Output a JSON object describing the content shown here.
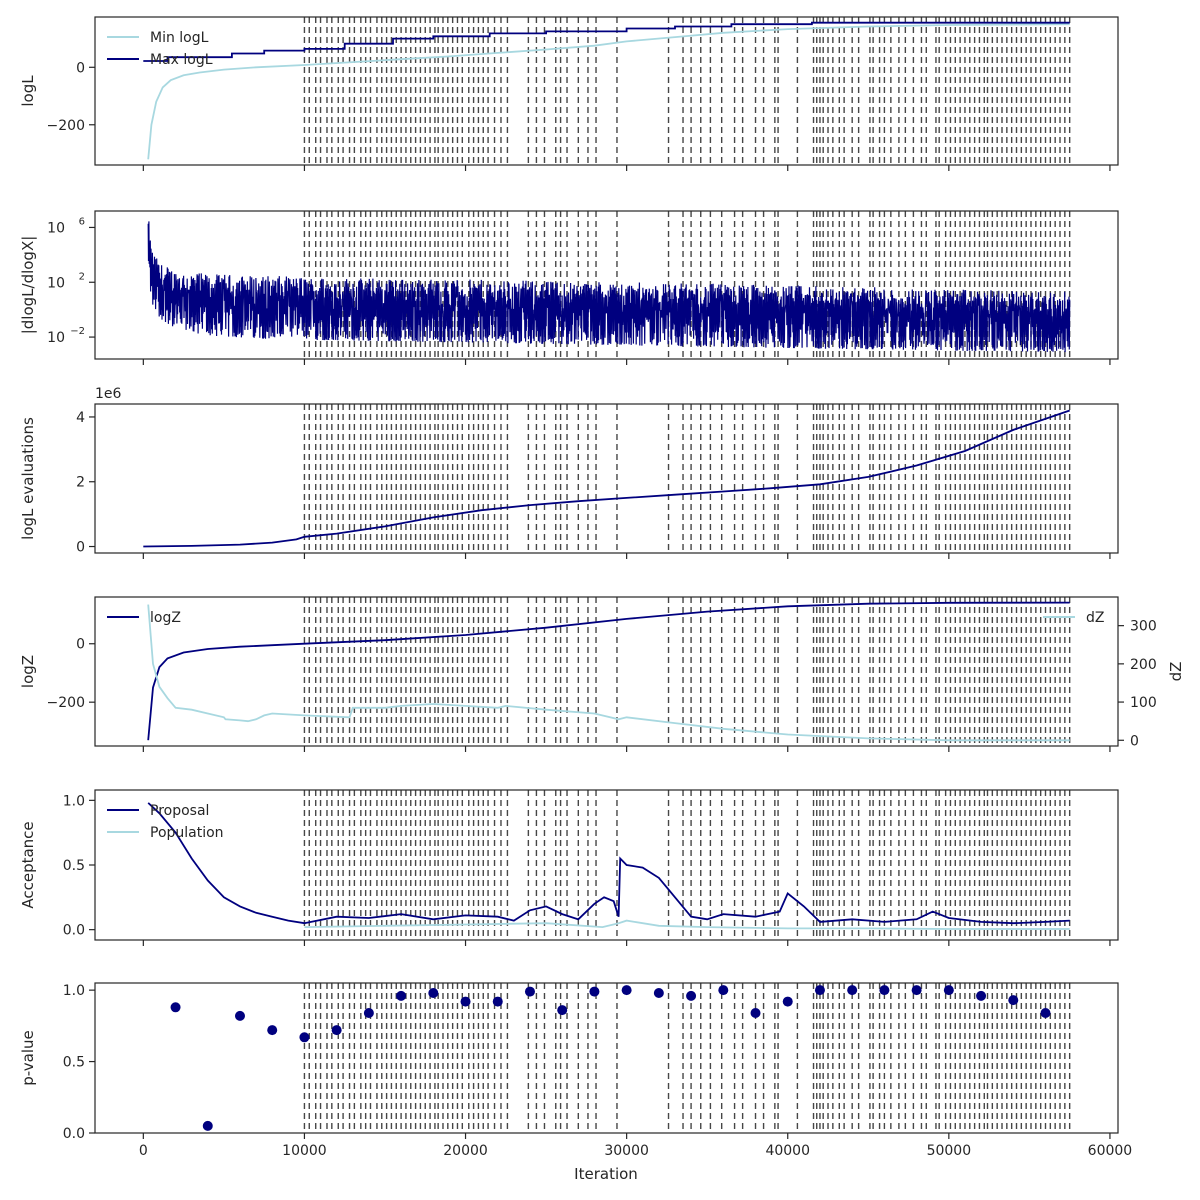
{
  "colors": {
    "dark": "#00007f",
    "light": "#a8d8e0",
    "vline": "#262626"
  },
  "chart_data": {
    "type": "line",
    "shared_x": {
      "label": "Iteration",
      "lim": [
        -3000,
        60500
      ],
      "ticks": [
        0,
        10000,
        20000,
        30000,
        40000,
        50000,
        60000
      ],
      "tick_labels": [
        "0",
        "10000",
        "20000",
        "30000",
        "40000",
        "50000",
        "60000"
      ]
    },
    "vertical_dashed_lines": [
      10000,
      10300,
      10700,
      11000,
      11400,
      11700,
      12100,
      12400,
      12800,
      13100,
      13500,
      13800,
      14100,
      14500,
      14800,
      15100,
      15400,
      15700,
      16000,
      16300,
      16600,
      16900,
      17200,
      17500,
      17800,
      18100,
      18300,
      18600,
      18900,
      19200,
      19500,
      19800,
      20200,
      20500,
      20800,
      21100,
      21400,
      21800,
      22200,
      22600,
      23900,
      24400,
      24900,
      25600,
      25900,
      26300,
      27000,
      27600,
      28100,
      29400,
      32600,
      33500,
      34000,
      34600,
      35200,
      35900,
      36700,
      37200,
      38000,
      38500,
      39200,
      39400,
      40600,
      41600,
      41800,
      42000,
      42200,
      42500,
      42800,
      43200,
      43500,
      44000,
      44400,
      45100,
      45300,
      45700,
      46000,
      46400,
      46900,
      47300,
      47800,
      48300,
      48600,
      49200,
      49400,
      49800,
      50100,
      50400,
      50700,
      51000,
      51300,
      51600,
      51900,
      52200,
      52400,
      52700,
      53000,
      53300,
      53600,
      53900,
      54200,
      54500,
      54800,
      55100,
      55400,
      55700,
      56000,
      56300,
      56600,
      56900,
      57200,
      57500
    ],
    "panels": [
      {
        "id": "logl",
        "ylabel": "logL",
        "yscale": "linear",
        "ylim": [
          -340,
          175
        ],
        "yticks": [
          -200,
          0
        ],
        "ytick_labels": [
          "−200",
          "0"
        ],
        "legend": "upper-left",
        "series": [
          {
            "name": "Min logL",
            "color_key": "light",
            "x": [
              300,
              500,
              800,
              1200,
              1700,
              2500,
              3500,
              5000,
              7000,
              10000,
              13000,
              16000,
              19000,
              22000,
              25000,
              28000,
              30000,
              33000,
              36000,
              40000,
              45000,
              50000,
              57500
            ],
            "y": [
              -320,
              -200,
              -120,
              -70,
              -45,
              -28,
              -18,
              -8,
              0,
              8,
              18,
              28,
              38,
              50,
              62,
              75,
              90,
              105,
              120,
              133,
              142,
              147,
              150
            ]
          },
          {
            "name": "Max logL",
            "color_key": "dark",
            "x": [
              0,
              1500,
              1500,
              5500,
              5500,
              7500,
              7500,
              10000,
              10000,
              12500,
              12500,
              15500,
              15500,
              18000,
              18000,
              21500,
              21500,
              25000,
              25000,
              30000,
              30000,
              33000,
              33000,
              36500,
              36500,
              41500,
              41500,
              57500
            ],
            "y": [
              22,
              22,
              35,
              35,
              48,
              48,
              58,
              58,
              64,
              64,
              82,
              82,
              100,
              100,
              108,
              108,
              118,
              118,
              125,
              125,
              135,
              135,
              142,
              142,
              150,
              150,
              155,
              155
            ]
          }
        ]
      },
      {
        "id": "dlogl",
        "ylabel": "|dlogL/dlogX|",
        "yscale": "log",
        "ylim": [
          -3.6,
          7.2
        ],
        "yticks": [
          -2,
          2,
          6
        ],
        "ytick_labels": [
          "10",
          "10",
          "10"
        ],
        "ytick_exponents": [
          "−2",
          "2",
          "6"
        ],
        "series": [
          {
            "name": "",
            "color_key": "dark",
            "kind": "noisy-band",
            "x": [
              300,
              500,
              1000,
              2000,
              4000,
              7000,
              10000,
              15000,
              20000,
              30000,
              40000,
              50000,
              57500
            ],
            "upper": [
              7.0,
              4.5,
              3.4,
              2.9,
              2.6,
              2.5,
              2.4,
              2.3,
              2.2,
              2.0,
              1.8,
              1.5,
              1.3
            ],
            "lower": [
              2.0,
              0.5,
              -0.6,
              -1.4,
              -1.9,
              -2.1,
              -2.2,
              -2.3,
              -2.4,
              -2.6,
              -2.8,
              -3.0,
              -3.1
            ]
          }
        ]
      },
      {
        "id": "evals",
        "ylabel": "logL evaluations",
        "yscale": "linear",
        "ylim": [
          -0.2,
          4.4
        ],
        "yticks": [
          0,
          2,
          4
        ],
        "ytick_labels": [
          "0",
          "2",
          "4"
        ],
        "offset_text": "1e6",
        "series": [
          {
            "name": "",
            "color_key": "dark",
            "x": [
              0,
              3000,
              6000,
              8000,
              9500,
              10000,
              12000,
              15000,
              18000,
              21000,
              24000,
              27000,
              30000,
              33000,
              36000,
              39000,
              42000,
              45000,
              48000,
              51000,
              54000,
              57500
            ],
            "y": [
              0.0,
              0.02,
              0.06,
              0.12,
              0.22,
              0.3,
              0.4,
              0.62,
              0.9,
              1.12,
              1.28,
              1.4,
              1.5,
              1.6,
              1.7,
              1.8,
              1.92,
              2.15,
              2.5,
              2.95,
              3.6,
              4.2
            ]
          }
        ]
      },
      {
        "id": "logz",
        "ylabel": "logZ",
        "ylabel2": "dZ",
        "yscale": "linear",
        "ylim": [
          -350,
          160
        ],
        "yticks": [
          -200,
          0
        ],
        "ytick_labels": [
          "−200",
          "0"
        ],
        "y2lim": [
          -15,
          375
        ],
        "y2ticks": [
          0,
          100,
          200,
          300
        ],
        "y2tick_labels": [
          "0",
          "100",
          "200",
          "300"
        ],
        "legend": "upper-left",
        "legend2": "upper-right",
        "series": [
          {
            "name": "logZ",
            "color_key": "dark",
            "axis": "left",
            "x": [
              300,
              600,
              1000,
              1500,
              2500,
              4000,
              6000,
              8000,
              10000,
              15000,
              20000,
              25000,
              30000,
              35000,
              40000,
              45000,
              50000,
              57500
            ],
            "y": [
              -330,
              -150,
              -80,
              -50,
              -30,
              -18,
              -10,
              -5,
              0,
              12,
              30,
              55,
              85,
              110,
              128,
              137,
              140,
              141
            ]
          },
          {
            "name": "dZ",
            "color_key": "light",
            "axis": "right",
            "x": [
              300,
              600,
              1000,
              1500,
              2000,
              3000,
              4000,
              5000,
              5100,
              6000,
              6500,
              7000,
              7500,
              8000,
              10000,
              12800,
              13000,
              15000,
              16000,
              18000,
              20000,
              22000,
              22500,
              25000,
              28000,
              29500,
              30000,
              33000,
              36000,
              40000,
              45000,
              50000,
              57500
            ],
            "y": [
              355,
              200,
              140,
              110,
              85,
              80,
              70,
              60,
              55,
              52,
              50,
              55,
              65,
              70,
              65,
              60,
              85,
              85,
              90,
              95,
              90,
              85,
              90,
              80,
              70,
              55,
              60,
              45,
              30,
              15,
              5,
              0,
              0
            ]
          }
        ]
      },
      {
        "id": "acceptance",
        "ylabel": "Acceptance",
        "yscale": "linear",
        "ylim": [
          -0.08,
          1.08
        ],
        "yticks": [
          0,
          0.5,
          1
        ],
        "ytick_labels": [
          "0.0",
          "0.5",
          "1.0"
        ],
        "legend": "upper-left",
        "series": [
          {
            "name": "Proposal",
            "color_key": "dark",
            "x": [
              300,
              1000,
              2000,
              3000,
              4000,
              5000,
              6000,
              7000,
              8000,
              9000,
              10000,
              12000,
              14000,
              16000,
              18000,
              20000,
              22000,
              23000,
              24000,
              25000,
              26000,
              27000,
              28000,
              28600,
              29200,
              29500,
              29600,
              30000,
              31000,
              32000,
              33000,
              34000,
              35000,
              36000,
              38000,
              39500,
              40000,
              41000,
              42000,
              44000,
              46000,
              48000,
              49000,
              50000,
              52000,
              54000,
              56000,
              57500
            ],
            "y": [
              0.98,
              0.9,
              0.75,
              0.55,
              0.38,
              0.25,
              0.18,
              0.13,
              0.1,
              0.07,
              0.05,
              0.1,
              0.09,
              0.12,
              0.08,
              0.11,
              0.1,
              0.07,
              0.15,
              0.18,
              0.12,
              0.08,
              0.2,
              0.25,
              0.22,
              0.1,
              0.55,
              0.5,
              0.48,
              0.4,
              0.25,
              0.1,
              0.08,
              0.12,
              0.1,
              0.14,
              0.28,
              0.18,
              0.06,
              0.08,
              0.06,
              0.08,
              0.14,
              0.09,
              0.06,
              0.05,
              0.06,
              0.07
            ]
          },
          {
            "name": "Population",
            "color_key": "light",
            "x": [
              10000,
              15000,
              20000,
              25000,
              28500,
              29500,
              30000,
              32000,
              35000,
              40000,
              45000,
              50000,
              57500
            ],
            "y": [
              0.02,
              0.03,
              0.04,
              0.05,
              0.02,
              0.05,
              0.07,
              0.03,
              0.02,
              0.01,
              0.01,
              0.005,
              0.005
            ]
          }
        ]
      },
      {
        "id": "pvalue",
        "ylabel": "p-value",
        "xlabel": "Iteration",
        "yscale": "linear",
        "ylim": [
          0,
          1.05
        ],
        "yticks": [
          0,
          0.5,
          1
        ],
        "ytick_labels": [
          "0.0",
          "0.5",
          "1.0"
        ],
        "series": [
          {
            "name": "",
            "color_key": "dark",
            "kind": "scatter",
            "x": [
              2000,
              4000,
              6000,
              8000,
              10000,
              12000,
              14000,
              16000,
              18000,
              20000,
              22000,
              24000,
              26000,
              28000,
              30000,
              32000,
              34000,
              36000,
              38000,
              40000,
              42000,
              44000,
              46000,
              48000,
              50000,
              52000,
              54000,
              56000
            ],
            "y": [
              0.88,
              0.05,
              0.82,
              0.72,
              0.67,
              0.72,
              0.84,
              0.96,
              0.98,
              0.92,
              0.92,
              0.99,
              0.86,
              0.99,
              1.0,
              0.98,
              0.96,
              1.0,
              0.84,
              0.92,
              1.0,
              1.0,
              1.0,
              1.0,
              1.0,
              0.96,
              0.93,
              0.84
            ]
          }
        ]
      }
    ]
  }
}
